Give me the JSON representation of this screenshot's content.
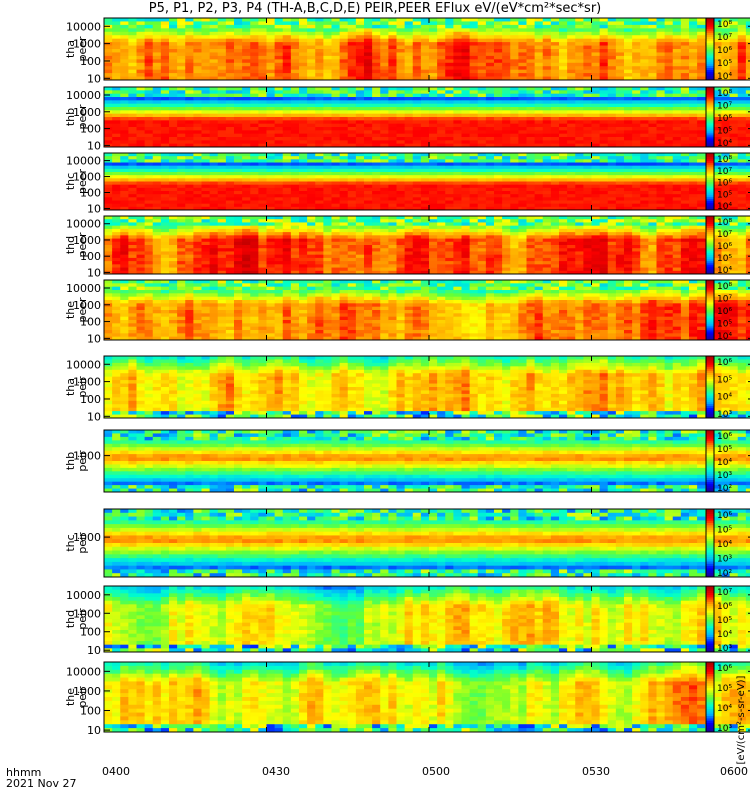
{
  "title": "P5, P1, P2, P3, P4 (TH-A,B,C,D,E) PEIR,PEER EFlux eV/(eV*cm²*sec*sr)",
  "chart_data": {
    "type": "heatmap",
    "title": "P5, P1, P2, P3, P4 (TH-A,B,C,D,E) PEIR,PEER EFlux eV/(eV*cm²*sec*sr)",
    "x_axis": {
      "label": "hhmm",
      "date": "2021 Nov 27",
      "ticks": [
        "0400",
        "0430",
        "0500",
        "0530",
        "0600"
      ],
      "range": [
        "0400",
        "0600"
      ]
    },
    "colorbar_unit": "[eV/(cm²-s-sr-eV)]",
    "panels": [
      {
        "id": "tha_peer",
        "ylabel": [
          "tha",
          "peer"
        ],
        "yscale": "log",
        "ylim": [
          8,
          30000
        ],
        "yticks": [
          "10",
          "100",
          "1000",
          "10000"
        ],
        "colorbar_ticks": [
          "10⁴",
          "10⁵",
          "10⁶",
          "10⁷",
          "10⁸"
        ],
        "level": "variable",
        "seed": 11
      },
      {
        "id": "thb_peer",
        "ylabel": [
          "thb",
          "peer"
        ],
        "yscale": "log",
        "ylim": [
          8,
          30000
        ],
        "yticks": [
          "10",
          "100",
          "1000",
          "10000"
        ],
        "colorbar_ticks": [
          "10⁴",
          "10⁵",
          "10⁶",
          "10⁷",
          "10⁸"
        ],
        "level": "steady",
        "seed": 23
      },
      {
        "id": "thc_peer",
        "ylabel": [
          "thc",
          "peer"
        ],
        "yscale": "log",
        "ylim": [
          8,
          30000
        ],
        "yticks": [
          "10",
          "100",
          "1000",
          "10000"
        ],
        "colorbar_ticks": [
          "10⁴",
          "10⁵",
          "10⁶",
          "10⁷",
          "10⁸"
        ],
        "level": "steady",
        "seed": 37
      },
      {
        "id": "thd_peer",
        "ylabel": [
          "thd",
          "peer"
        ],
        "yscale": "log",
        "ylim": [
          8,
          30000
        ],
        "yticks": [
          "10",
          "100",
          "1000",
          "10000"
        ],
        "colorbar_ticks": [
          "10⁴",
          "10⁵",
          "10⁶",
          "10⁷",
          "10⁸"
        ],
        "level": "variable",
        "seed": 41
      },
      {
        "id": "the_peer",
        "ylabel": [
          "the",
          "peer"
        ],
        "yscale": "log",
        "ylim": [
          8,
          30000
        ],
        "yticks": [
          "10",
          "100",
          "1000",
          "10000"
        ],
        "colorbar_ticks": [
          "10⁴",
          "10⁵",
          "10⁶",
          "10⁷",
          "10⁸"
        ],
        "level": "variable",
        "seed": 53
      },
      {
        "id": "tha_peir",
        "ylabel": [
          "tha",
          "peir"
        ],
        "yscale": "log",
        "ylim": [
          8,
          30000
        ],
        "yticks": [
          "10",
          "100",
          "1000",
          "10000"
        ],
        "colorbar_ticks": [
          "10³",
          "10⁴",
          "10⁵",
          "10⁶"
        ],
        "level": "ion",
        "seed": 61
      },
      {
        "id": "thb_peir",
        "ylabel": [
          "thb",
          "peir"
        ],
        "yscale": "log",
        "ylim": [
          8,
          30000
        ],
        "yticks": [
          "1000"
        ],
        "colorbar_ticks": [
          "10²",
          "10³",
          "10⁴",
          "10⁵",
          "10⁶"
        ],
        "level": "band",
        "seed": 71
      },
      {
        "id": "thc_peir",
        "ylabel": [
          "thc",
          "peir"
        ],
        "yscale": "log",
        "ylim": [
          8,
          30000
        ],
        "yticks": [
          "1000"
        ],
        "colorbar_ticks": [
          "10²",
          "10³",
          "10⁴",
          "10⁵",
          "10⁶"
        ],
        "level": "band",
        "seed": 83
      },
      {
        "id": "thd_peir",
        "ylabel": [
          "thd",
          "peir"
        ],
        "yscale": "log",
        "ylim": [
          8,
          30000
        ],
        "yticks": [
          "10",
          "100",
          "1000",
          "10000"
        ],
        "colorbar_ticks": [
          "10³",
          "10⁴",
          "10⁵",
          "10⁶",
          "10⁷"
        ],
        "level": "ion",
        "seed": 97
      },
      {
        "id": "the_peir",
        "ylabel": [
          "the",
          "peir"
        ],
        "yscale": "log",
        "ylim": [
          8,
          30000
        ],
        "yticks": [
          "10",
          "100",
          "1000",
          "10000"
        ],
        "colorbar_ticks": [
          "10³",
          "10⁴",
          "10⁵",
          "10⁶"
        ],
        "level": "ion",
        "seed": 101
      }
    ],
    "colormap": [
      "#1a0099",
      "#0000ff",
      "#00b4ff",
      "#00ffcc",
      "#66ff33",
      "#ffff00",
      "#ff9900",
      "#ff0000",
      "#b30000"
    ]
  }
}
